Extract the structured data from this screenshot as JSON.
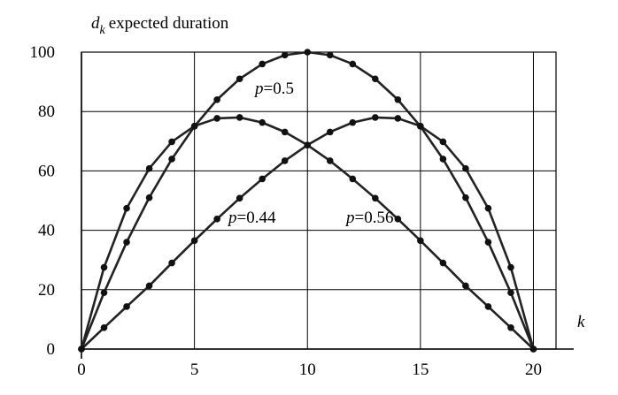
{
  "chart_data": {
    "type": "line",
    "title": "",
    "ylabel_var": "d",
    "ylabel_sub": "k",
    "ylabel_text": "expected duration",
    "xlabel": "k",
    "xlim": [
      0,
      21
    ],
    "ylim": [
      0,
      100
    ],
    "xticks": [
      0,
      5,
      10,
      15,
      20
    ],
    "yticks": [
      0,
      20,
      40,
      60,
      80,
      100
    ],
    "grid": true,
    "x": [
      0,
      1,
      2,
      3,
      4,
      5,
      6,
      7,
      8,
      9,
      10,
      11,
      12,
      13,
      14,
      15,
      16,
      17,
      18,
      19,
      20
    ],
    "series": [
      {
        "name_var": "p",
        "name_value": "=0.5",
        "values": [
          0,
          19,
          36,
          51,
          64,
          75,
          84,
          91,
          96,
          99,
          100,
          99,
          96,
          91,
          84,
          75,
          64,
          51,
          36,
          19,
          0
        ]
      },
      {
        "name_var": "p",
        "name_value": "=0.44",
        "values": [
          0,
          27.5,
          47.4,
          60.8,
          69.8,
          75.1,
          77.7,
          78.0,
          76.3,
          73.1,
          68.7,
          63.4,
          57.3,
          50.8,
          43.8,
          36.5,
          29.0,
          21.3,
          14.3,
          7.2,
          0
        ]
      },
      {
        "name_var": "p",
        "name_value": "=0.56",
        "values": [
          0,
          7.2,
          14.3,
          21.3,
          29.0,
          36.5,
          43.8,
          50.8,
          57.3,
          63.4,
          68.7,
          73.1,
          76.3,
          78.0,
          77.7,
          75.1,
          69.8,
          60.8,
          47.4,
          27.5,
          0
        ]
      }
    ]
  }
}
